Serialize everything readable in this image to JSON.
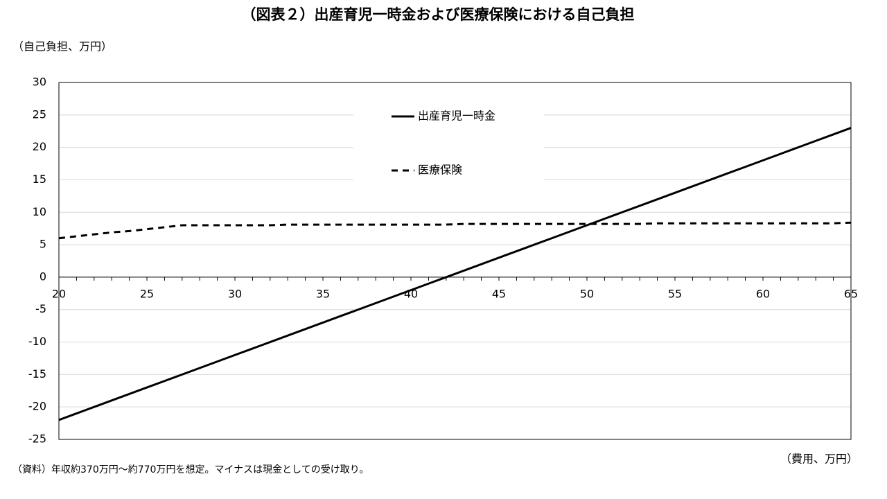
{
  "chart_data": {
    "type": "line",
    "title": "（図表２）出産育児一時金および医療保険における自己負担",
    "y_label": "（自己負担、万円）",
    "x_label": "（費用、万円）",
    "note": "（資料）年収約370万円〜約770万円を想定。マイナスは現金としての受け取り。",
    "x": [
      20,
      21,
      22,
      23,
      24,
      25,
      26,
      27,
      28,
      29,
      30,
      31,
      32,
      33,
      34,
      35,
      36,
      37,
      38,
      39,
      40,
      41,
      42,
      43,
      44,
      45,
      46,
      47,
      48,
      49,
      50,
      51,
      52,
      53,
      54,
      55,
      56,
      57,
      58,
      59,
      60,
      61,
      62,
      63,
      64,
      65
    ],
    "series": [
      {
        "name": "出産育児一時金",
        "color": "#000000",
        "dash": "solid",
        "values": [
          -22,
          -21,
          -20,
          -19,
          -18,
          -17,
          -16,
          -15,
          -14,
          -13,
          -12,
          -11,
          -10,
          -9,
          -8,
          -7,
          -6,
          -5,
          -4,
          -3,
          -2,
          -1,
          0,
          1,
          2,
          3,
          4,
          5,
          6,
          7,
          8,
          9,
          10,
          11,
          12,
          13,
          14,
          15,
          16,
          17,
          18,
          19,
          20,
          21,
          22,
          23
        ]
      },
      {
        "name": "医療保険",
        "color": "#000000",
        "dash": "dashed",
        "values": [
          6.0,
          6.3,
          6.6,
          6.9,
          7.1,
          7.4,
          7.7,
          8.0,
          8.0,
          8.0,
          8.0,
          8.0,
          8.0,
          8.1,
          8.1,
          8.1,
          8.1,
          8.1,
          8.1,
          8.1,
          8.1,
          8.1,
          8.1,
          8.2,
          8.2,
          8.2,
          8.2,
          8.2,
          8.2,
          8.2,
          8.2,
          8.2,
          8.2,
          8.2,
          8.3,
          8.3,
          8.3,
          8.3,
          8.3,
          8.3,
          8.3,
          8.3,
          8.3,
          8.3,
          8.3,
          8.4
        ]
      }
    ],
    "xlim": [
      20,
      65
    ],
    "xticks": [
      20,
      25,
      30,
      35,
      40,
      45,
      50,
      55,
      60,
      65
    ],
    "ylim": [
      -25,
      30
    ],
    "yticks": [
      -25,
      -20,
      -15,
      -10,
      -5,
      0,
      5,
      10,
      15,
      20,
      25,
      30
    ],
    "grid": true
  }
}
